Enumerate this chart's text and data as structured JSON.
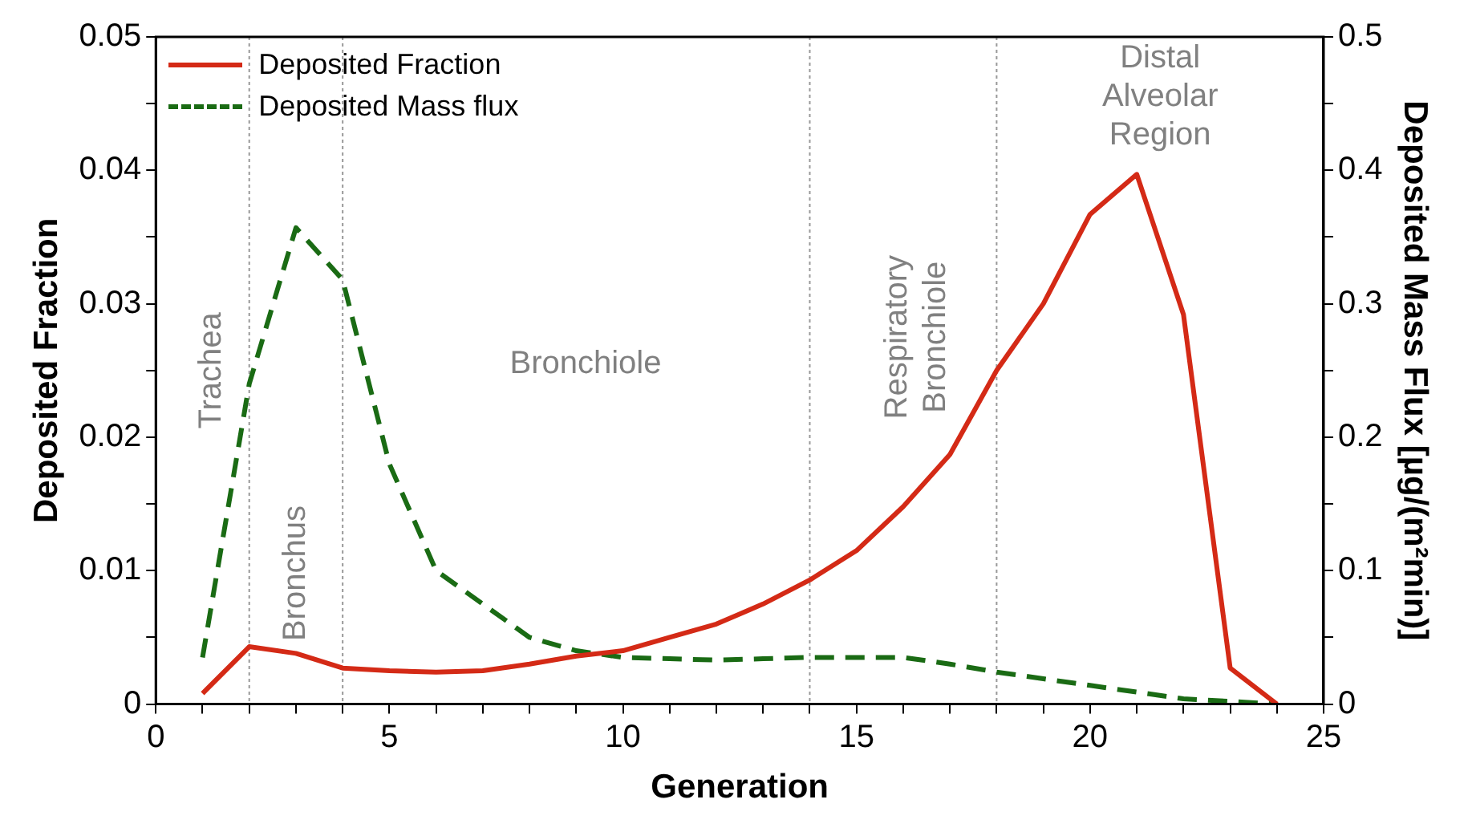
{
  "chart_data": {
    "type": "line",
    "xlabel": "Generation",
    "ylabel": "Deposited Fraction",
    "y2label": "Deposited Mass Flux [µg/(m²min)]",
    "x": [
      1,
      2,
      3,
      4,
      5,
      6,
      7,
      8,
      9,
      10,
      11,
      12,
      13,
      14,
      15,
      16,
      17,
      18,
      19,
      20,
      21,
      22,
      23,
      24
    ],
    "series": [
      {
        "name": "Deposited Fraction",
        "color": "#d42a16",
        "line_style": "solid",
        "values": [
          0.0008,
          0.0043,
          0.0038,
          0.0027,
          0.0025,
          0.0024,
          0.0025,
          0.003,
          0.0036,
          0.004,
          0.005,
          0.006,
          0.0075,
          0.0093,
          0.0115,
          0.0148,
          0.0187,
          0.025,
          0.03,
          0.0367,
          0.0397,
          0.0292,
          0.0027,
          0
        ]
      },
      {
        "name": "Deposited Mass flux",
        "color": "#1a6b14",
        "line_style": "dashed",
        "axis": "y2",
        "values": [
          0.035,
          0.24,
          0.357,
          0.318,
          0.18,
          0.1,
          0.075,
          0.05,
          0.04,
          0.035,
          0.034,
          0.033,
          0.034,
          0.035,
          0.035,
          0.035,
          0.03,
          0.024,
          0.019,
          0.014,
          0.009,
          0.004,
          0.002,
          0
        ]
      }
    ],
    "xlim": [
      0,
      25
    ],
    "xticks": [
      0,
      {
        "value": 1,
        "label": null
      },
      {
        "value": 2,
        "label": null
      },
      {
        "value": 3,
        "label": null
      },
      {
        "value": 4,
        "label": null
      },
      5,
      {
        "value": 6,
        "label": null
      },
      {
        "value": 7,
        "label": null
      },
      {
        "value": 8,
        "label": null
      },
      {
        "value": 9,
        "label": null
      },
      10,
      {
        "value": 11,
        "label": null
      },
      {
        "value": 12,
        "label": null
      },
      {
        "value": 13,
        "label": null
      },
      {
        "value": 14,
        "label": null
      },
      15,
      {
        "value": 16,
        "label": null
      },
      {
        "value": 17,
        "label": null
      },
      {
        "value": 18,
        "label": null
      },
      {
        "value": 19,
        "label": null
      },
      20,
      {
        "value": 21,
        "label": null
      },
      {
        "value": 22,
        "label": null
      },
      {
        "value": 23,
        "label": null
      },
      {
        "value": 24,
        "label": null
      },
      25
    ],
    "ylim": [
      0,
      0.05
    ],
    "yticks": [
      0,
      {
        "value": 0.005,
        "label": null
      },
      0.01,
      {
        "value": 0.015,
        "label": null
      },
      0.02,
      {
        "value": 0.025,
        "label": null
      },
      0.03,
      {
        "value": 0.035,
        "label": null
      },
      0.04,
      {
        "value": 0.045,
        "label": null
      },
      0.05
    ],
    "y2lim": [
      0,
      0.5
    ],
    "y2ticks": [
      0,
      {
        "value": 0.05,
        "label": null
      },
      0.1,
      {
        "value": 0.15,
        "label": null
      },
      0.2,
      {
        "value": 0.25,
        "label": null
      },
      0.3,
      {
        "value": 0.35,
        "label": null
      },
      0.4,
      {
        "value": 0.45,
        "label": null
      },
      0.5
    ],
    "ref_lines": [
      {
        "axis": "x",
        "value": 2,
        "color": "#999999",
        "line_style": "dotted"
      },
      {
        "axis": "x",
        "value": 4,
        "color": "#999999",
        "line_style": "dotted"
      },
      {
        "axis": "x",
        "value": 14,
        "color": "#999999",
        "line_style": "dotted"
      },
      {
        "axis": "x",
        "value": 18,
        "color": "#999999",
        "line_style": "dotted"
      }
    ],
    "annotations": [
      "Trachea",
      "Bronchus",
      "Bronchiole",
      "Respiratory\nBronchiole",
      "Distal\nAlveolar\nRegion"
    ],
    "grid": false,
    "legend": "top left",
    "marker": "none"
  }
}
